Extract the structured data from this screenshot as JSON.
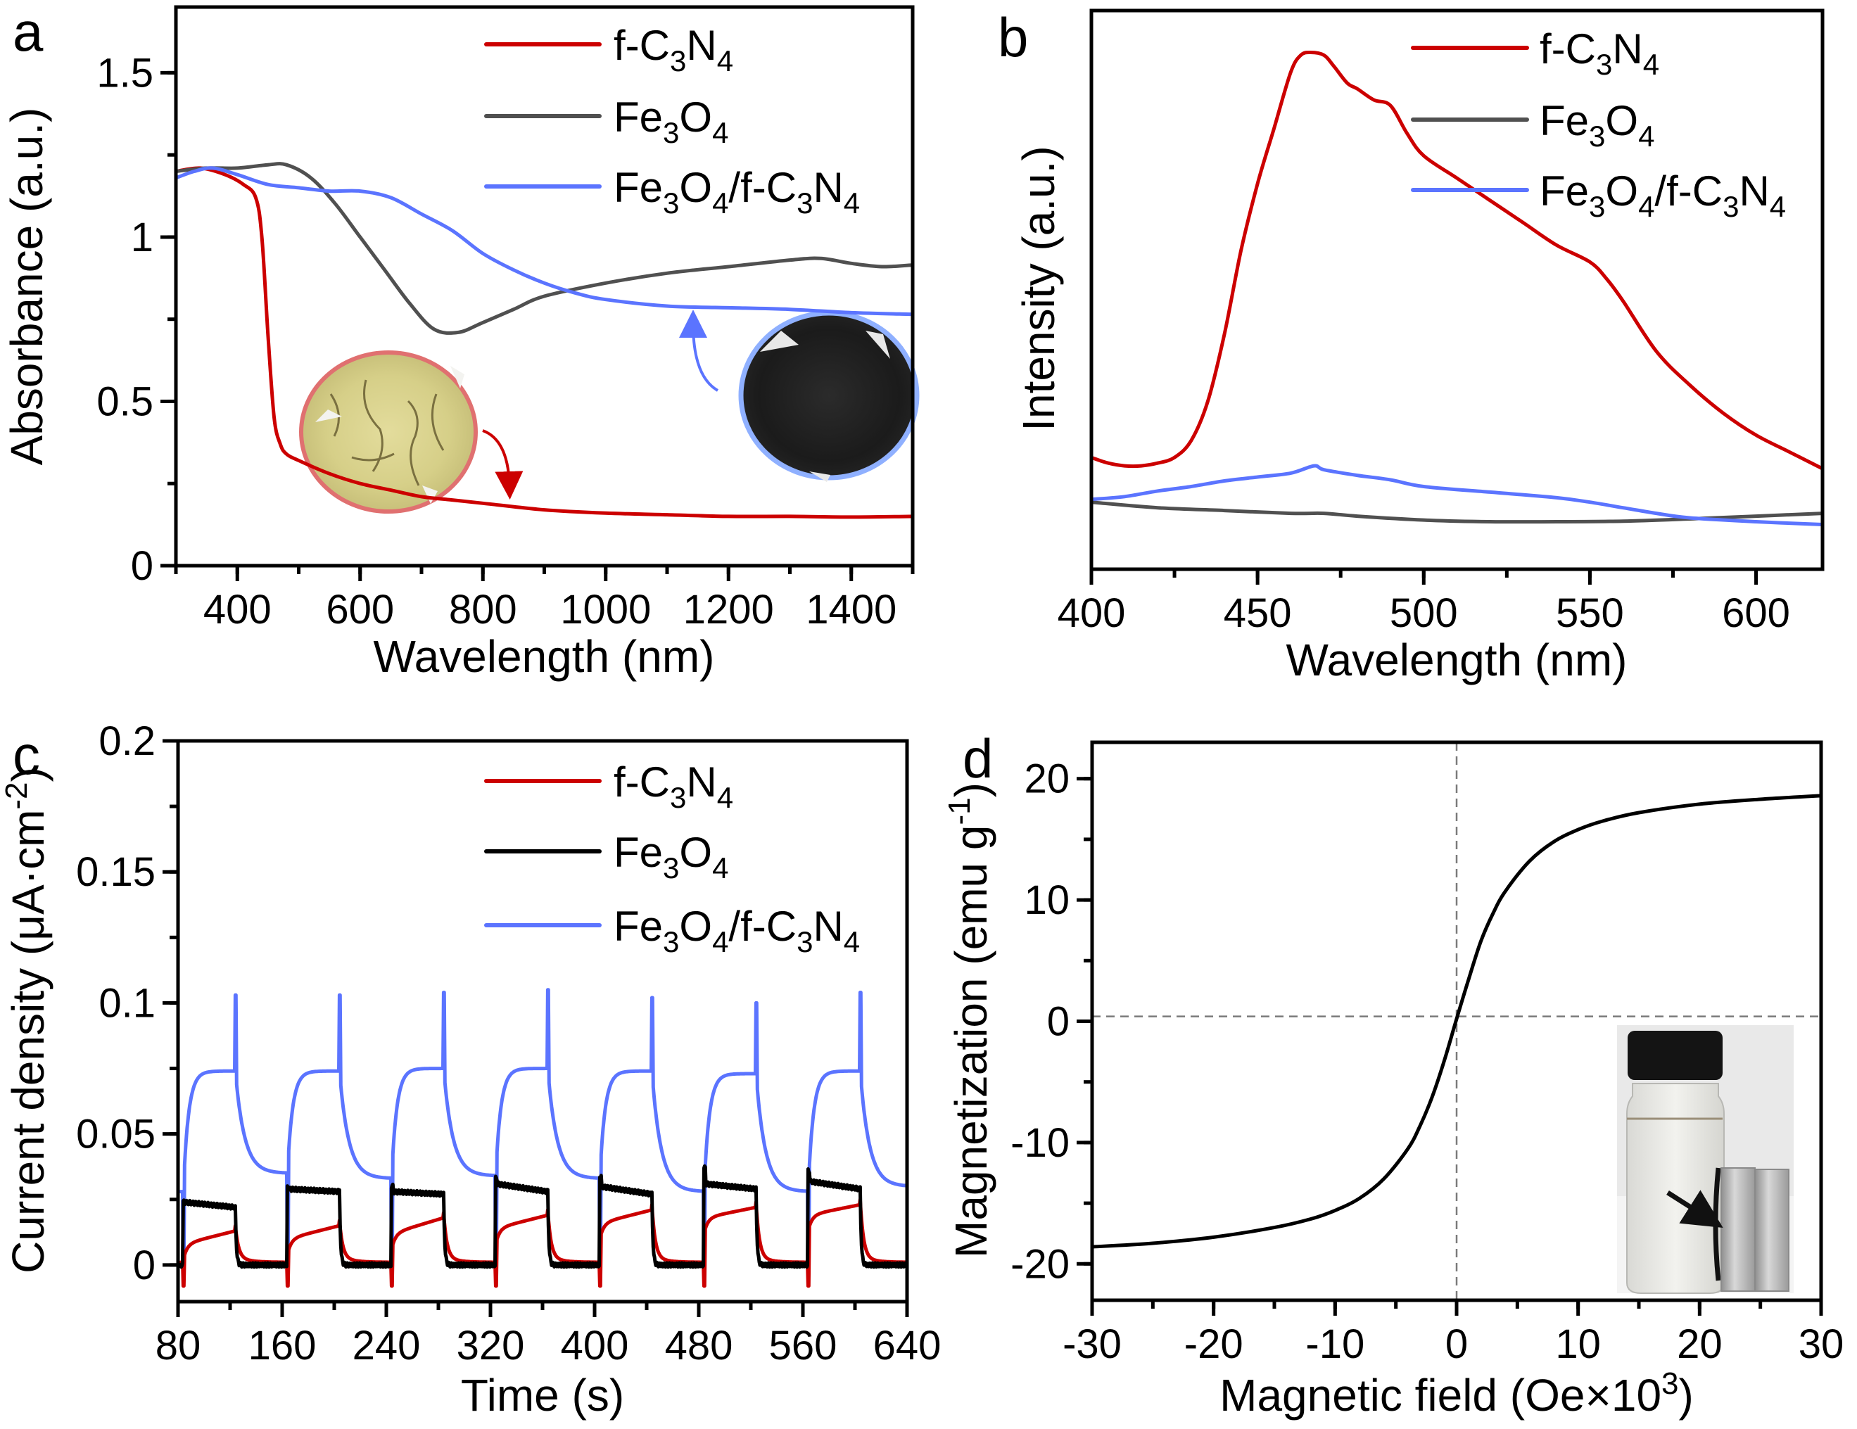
{
  "figure": {
    "panels": [
      "a",
      "b",
      "c",
      "d"
    ]
  },
  "chart_data": [
    {
      "panel": "a",
      "type": "line",
      "title": "",
      "xlabel": "Wavelength (nm)",
      "ylabel": "Absorbance (a.u.)",
      "xlim": [
        300,
        1500
      ],
      "ylim": [
        0,
        1.7
      ],
      "xticks": [
        400,
        600,
        800,
        1000,
        1200,
        1400
      ],
      "yticks": [
        0,
        0.5,
        1,
        1.5
      ],
      "ytick_labels": [
        "0",
        "0.5",
        "1",
        "1.5"
      ],
      "legend_position": "top-right",
      "insets": [
        {
          "name": "f-C3N4 powder photo",
          "color": "#d9d38f",
          "border": "#e07070",
          "points_to_series": "f-C3N4"
        },
        {
          "name": "Fe3O4/f-C3N4 powder photo",
          "color": "#1e1e1e",
          "border": "#8fb0ff",
          "points_to_series": "Fe3O4/f-C3N4"
        }
      ],
      "series": [
        {
          "name": "f-C3N4",
          "label_parts": [
            [
              "f-C",
              ""
            ],
            [
              "3",
              "sub"
            ],
            [
              "N",
              ""
            ],
            [
              "4",
              "sub"
            ]
          ],
          "color": "#cc0000",
          "x": [
            300,
            340,
            380,
            410,
            430,
            440,
            450,
            460,
            470,
            480,
            500,
            550,
            600,
            650,
            700,
            750,
            800,
            900,
            1000,
            1100,
            1200,
            1300,
            1400,
            1500
          ],
          "y": [
            1.2,
            1.21,
            1.19,
            1.16,
            1.12,
            1.0,
            0.7,
            0.45,
            0.37,
            0.34,
            0.32,
            0.28,
            0.25,
            0.23,
            0.21,
            0.2,
            0.19,
            0.17,
            0.16,
            0.155,
            0.15,
            0.15,
            0.148,
            0.15
          ]
        },
        {
          "name": "Fe3O4",
          "label_parts": [
            [
              "Fe",
              ""
            ],
            [
              "3",
              "sub"
            ],
            [
              "O",
              ""
            ],
            [
              "4",
              "sub"
            ]
          ],
          "color": "#505050",
          "x": [
            300,
            350,
            400,
            450,
            480,
            520,
            560,
            600,
            640,
            680,
            720,
            760,
            800,
            850,
            900,
            1000,
            1100,
            1200,
            1300,
            1350,
            1400,
            1450,
            1500
          ],
          "y": [
            1.2,
            1.21,
            1.21,
            1.22,
            1.22,
            1.18,
            1.1,
            1.0,
            0.9,
            0.8,
            0.72,
            0.71,
            0.74,
            0.78,
            0.82,
            0.86,
            0.89,
            0.91,
            0.93,
            0.935,
            0.92,
            0.91,
            0.915
          ]
        },
        {
          "name": "Fe3O4/f-C3N4",
          "label_parts": [
            [
              "Fe",
              ""
            ],
            [
              "3",
              "sub"
            ],
            [
              "O",
              ""
            ],
            [
              "4",
              "sub"
            ],
            [
              "/f-C",
              ""
            ],
            [
              "3",
              "sub"
            ],
            [
              "N",
              ""
            ],
            [
              "4",
              "sub"
            ]
          ],
          "color": "#5b74ff",
          "x": [
            300,
            330,
            360,
            400,
            450,
            500,
            550,
            600,
            650,
            700,
            750,
            800,
            850,
            900,
            950,
            1000,
            1100,
            1200,
            1300,
            1400,
            1500
          ],
          "y": [
            1.18,
            1.2,
            1.21,
            1.19,
            1.16,
            1.15,
            1.14,
            1.14,
            1.12,
            1.07,
            1.02,
            0.95,
            0.9,
            0.86,
            0.83,
            0.81,
            0.79,
            0.785,
            0.78,
            0.77,
            0.765
          ]
        }
      ]
    },
    {
      "panel": "b",
      "type": "line",
      "title": "",
      "xlabel": "Wavelength (nm)",
      "ylabel": "Intensity (a.u.)",
      "xlim": [
        400,
        620
      ],
      "ylim": [
        0,
        1
      ],
      "xticks": [
        400,
        450,
        500,
        550,
        600
      ],
      "yticks": [],
      "legend_position": "top-right",
      "series": [
        {
          "name": "f-C3N4",
          "color": "#cc0000",
          "x": [
            400,
            405,
            410,
            415,
            420,
            425,
            430,
            435,
            440,
            445,
            450,
            455,
            460,
            463,
            466,
            470,
            473,
            477,
            480,
            485,
            490,
            495,
            500,
            510,
            520,
            530,
            540,
            550,
            555,
            560,
            570,
            580,
            590,
            600,
            610,
            620
          ],
          "y": [
            0.2,
            0.19,
            0.185,
            0.185,
            0.19,
            0.2,
            0.23,
            0.3,
            0.42,
            0.57,
            0.69,
            0.79,
            0.89,
            0.92,
            0.925,
            0.92,
            0.9,
            0.87,
            0.86,
            0.84,
            0.83,
            0.78,
            0.74,
            0.7,
            0.66,
            0.62,
            0.58,
            0.55,
            0.52,
            0.48,
            0.39,
            0.33,
            0.28,
            0.24,
            0.21,
            0.18
          ]
        },
        {
          "name": "Fe3O4",
          "color": "#505050",
          "x": [
            400,
            420,
            440,
            460,
            470,
            480,
            500,
            520,
            540,
            560,
            580,
            600,
            620
          ],
          "y": [
            0.12,
            0.11,
            0.105,
            0.1,
            0.1,
            0.095,
            0.088,
            0.085,
            0.085,
            0.086,
            0.09,
            0.095,
            0.1
          ]
        },
        {
          "name": "Fe3O4/f-C3N4",
          "color": "#5b74ff",
          "x": [
            400,
            410,
            420,
            430,
            440,
            450,
            460,
            467,
            470,
            480,
            490,
            500,
            520,
            540,
            550,
            560,
            570,
            580,
            600,
            620
          ],
          "y": [
            0.125,
            0.13,
            0.14,
            0.148,
            0.158,
            0.165,
            0.172,
            0.185,
            0.178,
            0.168,
            0.16,
            0.148,
            0.138,
            0.128,
            0.12,
            0.11,
            0.1,
            0.092,
            0.085,
            0.08
          ]
        }
      ]
    },
    {
      "panel": "c",
      "type": "line",
      "title": "",
      "xlabel": "Time (s)",
      "ylabel": "Current density (μA·cm⁻²)",
      "xlim": [
        80,
        640
      ],
      "ylim": [
        -0.014,
        0.2
      ],
      "xticks": [
        80,
        160,
        240,
        320,
        400,
        480,
        560,
        640
      ],
      "yticks": [
        0,
        0.05,
        0.1,
        0.15,
        0.2
      ],
      "ytick_labels": [
        "0",
        "0.05",
        "0.1",
        "0.15",
        "0.2"
      ],
      "legend_position": "top-right",
      "light_on_cycles": [
        [
          84,
          124
        ],
        [
          164,
          204
        ],
        [
          244,
          284
        ],
        [
          324,
          364
        ],
        [
          404,
          444
        ],
        [
          484,
          524
        ],
        [
          564,
          604
        ]
      ],
      "series": [
        {
          "name": "f-C3N4",
          "color": "#cc0000",
          "on_level_start": [
            0.008,
            0.01,
            0.012,
            0.014,
            0.016,
            0.018,
            0.019
          ],
          "on_level_end": [
            0.013,
            0.015,
            0.018,
            0.019,
            0.021,
            0.022,
            0.023
          ],
          "off_level": 0.001,
          "spike_min": -0.008
        },
        {
          "name": "Fe3O4",
          "color": "#000000",
          "on_level_start": [
            0.024,
            0.029,
            0.028,
            0.031,
            0.03,
            0.031,
            0.032
          ],
          "on_level_end": [
            0.022,
            0.028,
            0.027,
            0.028,
            0.027,
            0.029,
            0.029
          ],
          "off_level": 0.0,
          "spike_max": [
            0.024,
            0.03,
            0.03,
            0.033,
            0.034,
            0.037,
            0.036
          ]
        },
        {
          "name": "Fe3O4/f-C3N4",
          "color": "#5b74ff",
          "plateau": [
            0.074,
            0.074,
            0.075,
            0.075,
            0.074,
            0.073,
            0.074
          ],
          "spike_max": [
            0.103,
            0.103,
            0.104,
            0.105,
            0.102,
            0.1,
            0.104
          ],
          "off_min": [
            0.035,
            0.033,
            0.034,
            0.033,
            0.028,
            0.028,
            0.03
          ]
        }
      ]
    },
    {
      "panel": "d",
      "type": "line",
      "title": "",
      "xlabel": "Magnetic field (Oe×10³)",
      "ylabel": "Magnetization (emu g⁻¹)",
      "xlim": [
        -30,
        30
      ],
      "ylim": [
        -23,
        23
      ],
      "xticks": [
        -30,
        -20,
        -10,
        0,
        10,
        20,
        30
      ],
      "yticks": [
        -20,
        -10,
        0,
        10,
        20
      ],
      "reference_lines": {
        "vertical_x": 0,
        "horizontal_y": 0.4,
        "style": "dashed"
      },
      "inset": {
        "name": "vial with magnet photo",
        "arrow": true
      },
      "series": [
        {
          "name": "M-H curve",
          "color": "#000000",
          "x": [
            -30,
            -25,
            -20,
            -15,
            -12,
            -10,
            -8,
            -6,
            -4,
            -3,
            -2,
            -1,
            0,
            1,
            2,
            3,
            4,
            6,
            8,
            10,
            12,
            15,
            20,
            25,
            30
          ],
          "y": [
            -18.6,
            -18.3,
            -17.8,
            -17.0,
            -16.3,
            -15.6,
            -14.6,
            -13.0,
            -10.5,
            -8.6,
            -6.2,
            -3.2,
            0.2,
            3.5,
            6.6,
            8.9,
            10.7,
            13.2,
            14.8,
            15.8,
            16.5,
            17.2,
            17.9,
            18.3,
            18.6
          ]
        }
      ]
    }
  ]
}
